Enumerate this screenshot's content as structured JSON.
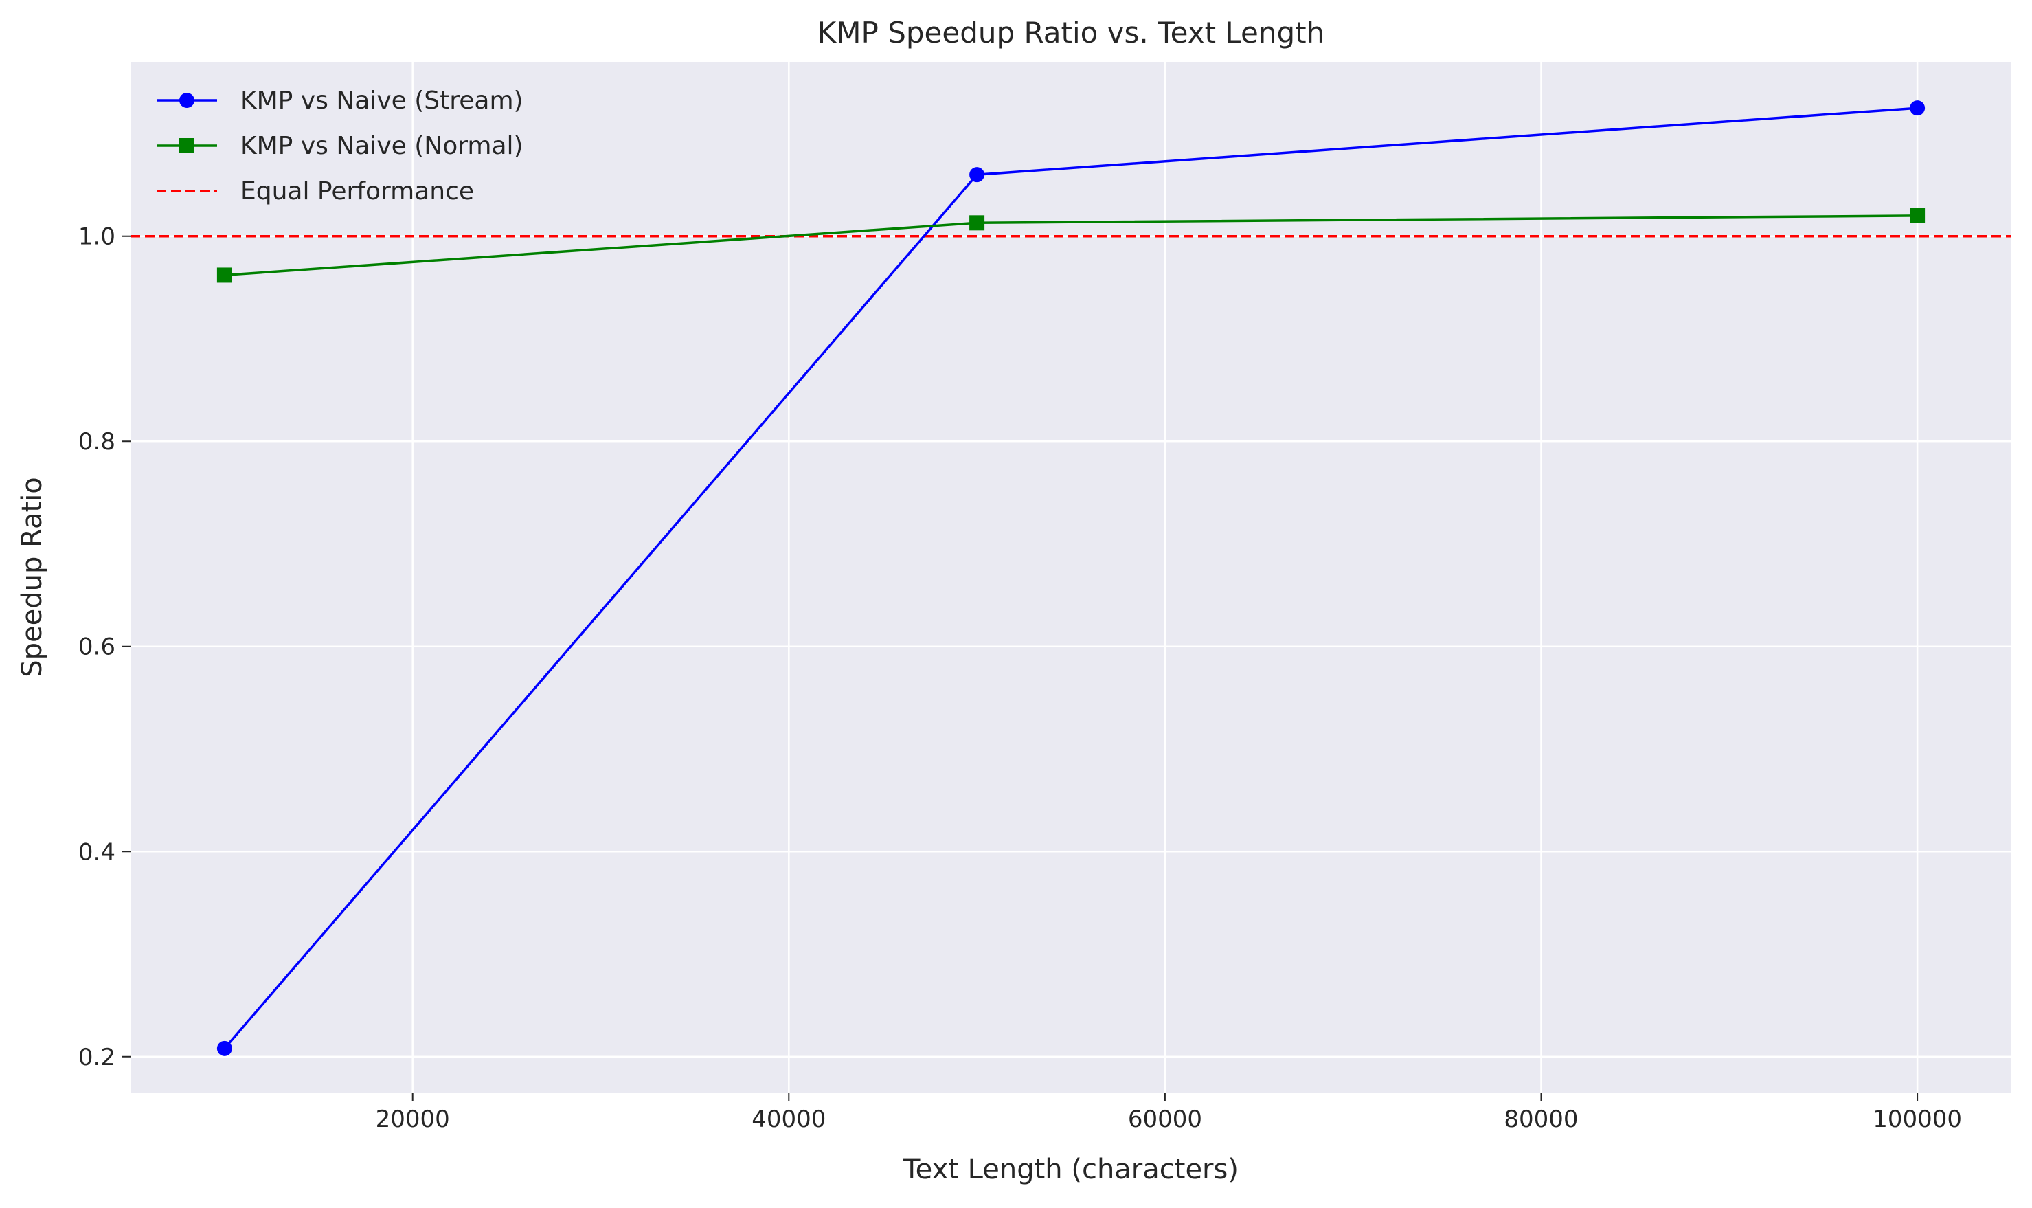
{
  "chart_data": {
    "type": "line",
    "title": "KMP Speedup Ratio vs. Text Length",
    "xlabel": "Text Length (characters)",
    "ylabel": "Speedup Ratio",
    "xlim": [
      5000,
      105000
    ],
    "ylim": [
      0.165,
      1.17
    ],
    "x_ticks": [
      20000,
      40000,
      60000,
      80000,
      100000
    ],
    "x_tick_labels": [
      "20000",
      "40000",
      "60000",
      "80000",
      "100000"
    ],
    "y_ticks": [
      0.2,
      0.4,
      0.6,
      0.8,
      1.0
    ],
    "y_tick_labels": [
      "0.2",
      "0.4",
      "0.6",
      "0.8",
      "1.0"
    ],
    "grid": true,
    "legend_position": "top-left",
    "background": "#eaeaf2",
    "x": [
      10000,
      50000,
      100000
    ],
    "series": [
      {
        "name": "KMP vs Naive (Stream)",
        "values": [
          0.208,
          1.06,
          1.125
        ],
        "color": "#0000ff",
        "marker": "circle",
        "line_style": "solid"
      },
      {
        "name": "KMP vs Naive (Normal)",
        "values": [
          0.962,
          1.013,
          1.02
        ],
        "color": "#008000",
        "marker": "square",
        "line_style": "solid"
      }
    ],
    "reference_lines": [
      {
        "name": "Equal Performance",
        "y": 1.0,
        "color": "#ff0000",
        "line_style": "dashed"
      }
    ]
  }
}
